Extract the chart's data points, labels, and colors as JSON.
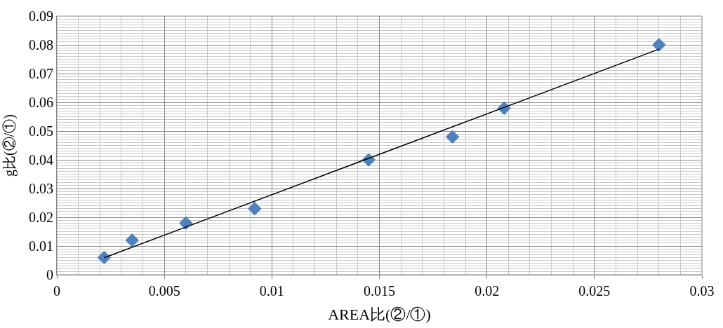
{
  "chart_data": {
    "type": "scatter",
    "xlabel": "AREA比(②/①)",
    "ylabel": "g比(②/①)",
    "series": [
      {
        "color": "#4f81bd",
        "marker": "diamond",
        "x": [
          0.0022,
          0.0035,
          0.006,
          0.0092,
          0.0145,
          0.0184,
          0.0208,
          0.028
        ],
        "values": [
          0.006,
          0.012,
          0.018,
          0.023,
          0.04,
          0.048,
          0.058,
          0.08
        ]
      },
      {
        "type": "line",
        "color": "#000000",
        "marker": "none",
        "line_style": "solid",
        "x": [
          0.0022,
          0.028
        ],
        "values": [
          0.0059,
          0.0785
        ]
      }
    ],
    "xlim": [
      0,
      0.03
    ],
    "xticks": [
      0,
      0.005,
      0.01,
      0.015,
      0.02,
      0.025,
      0.03
    ],
    "ylim": [
      0,
      0.09
    ],
    "yticks": [
      0,
      0.01,
      0.02,
      0.03,
      0.04,
      0.05,
      0.06,
      0.07,
      0.08,
      0.09
    ],
    "grid": true,
    "legend": false
  }
}
